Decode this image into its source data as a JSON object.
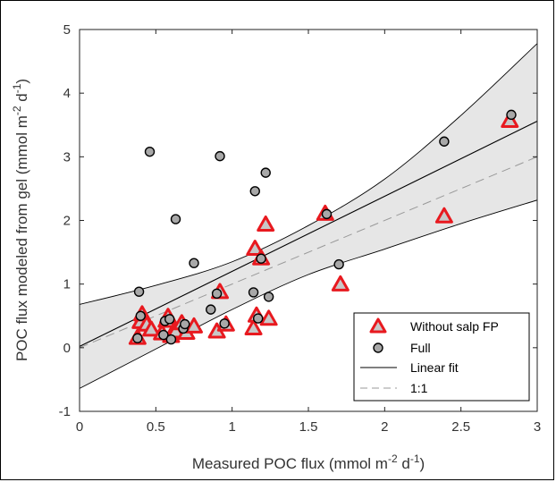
{
  "chart_data": {
    "type": "scatter",
    "xlabel": {
      "prefix": "Measured POC flux (mmol m",
      "exp1": "-2",
      "mid": " d",
      "exp2": "-1",
      "suffix": ")"
    },
    "ylabel": {
      "prefix": "POC flux modeled from gel (mmol m",
      "exp1": "-2",
      "mid": " d",
      "exp2": "-1",
      "suffix": ")"
    },
    "xlim": [
      0,
      3
    ],
    "ylim": [
      -1,
      5
    ],
    "xticks": [
      0,
      0.5,
      1,
      1.5,
      2,
      2.5,
      3
    ],
    "xtick_labels": [
      "0",
      "0.5",
      "1",
      "1.5",
      "2",
      "2.5",
      "3"
    ],
    "yticks": [
      -1,
      0,
      1,
      2,
      3,
      4,
      5
    ],
    "ytick_labels": [
      "-1",
      "0",
      "1",
      "2",
      "3",
      "4",
      "5"
    ],
    "grid": false,
    "legend_position": "bottom-right",
    "series": [
      {
        "name": "Without salp FP",
        "marker": "triangle",
        "color": "#e8191f",
        "fill": "#c8c8c8",
        "points": [
          [
            0.38,
            0.15
          ],
          [
            0.4,
            0.4
          ],
          [
            0.41,
            0.52
          ],
          [
            0.44,
            0.36
          ],
          [
            0.47,
            0.28
          ],
          [
            0.54,
            0.22
          ],
          [
            0.57,
            0.42
          ],
          [
            0.58,
            0.48
          ],
          [
            0.6,
            0.18
          ],
          [
            0.63,
            0.25
          ],
          [
            0.67,
            0.38
          ],
          [
            0.7,
            0.23
          ],
          [
            0.75,
            0.33
          ],
          [
            0.9,
            0.25
          ],
          [
            0.92,
            0.87
          ],
          [
            0.96,
            0.36
          ],
          [
            1.14,
            0.3
          ],
          [
            1.15,
            1.55
          ],
          [
            1.16,
            0.5
          ],
          [
            1.19,
            1.4
          ],
          [
            1.22,
            1.93
          ],
          [
            1.24,
            0.45
          ],
          [
            1.61,
            2.1
          ],
          [
            1.71,
            0.99
          ],
          [
            2.39,
            2.06
          ],
          [
            2.82,
            3.56
          ]
        ]
      },
      {
        "name": "Full",
        "marker": "circle",
        "color": "#000000",
        "fill": "#a8a8a8",
        "points": [
          [
            0.38,
            0.15
          ],
          [
            0.39,
            0.88
          ],
          [
            0.4,
            0.5
          ],
          [
            0.46,
            3.08
          ],
          [
            0.55,
            0.2
          ],
          [
            0.56,
            0.42
          ],
          [
            0.59,
            0.45
          ],
          [
            0.6,
            0.13
          ],
          [
            0.63,
            2.02
          ],
          [
            0.68,
            0.3
          ],
          [
            0.69,
            0.37
          ],
          [
            0.75,
            1.33
          ],
          [
            0.86,
            0.6
          ],
          [
            0.9,
            0.85
          ],
          [
            0.92,
            3.01
          ],
          [
            0.95,
            0.38
          ],
          [
            1.14,
            0.87
          ],
          [
            1.15,
            2.46
          ],
          [
            1.17,
            0.46
          ],
          [
            1.19,
            1.4
          ],
          [
            1.22,
            2.75
          ],
          [
            1.24,
            0.8
          ],
          [
            1.62,
            2.1
          ],
          [
            1.7,
            1.31
          ],
          [
            2.39,
            3.24
          ],
          [
            2.83,
            3.66
          ]
        ]
      }
    ],
    "fit": {
      "name": "Linear fit",
      "slope": 1.18,
      "intercept": 0.02,
      "ci_upper": [
        [
          0,
          0.68
        ],
        [
          0.5,
          0.98
        ],
        [
          1.0,
          1.35
        ],
        [
          1.5,
          1.92
        ],
        [
          2.0,
          2.65
        ],
        [
          2.5,
          3.65
        ],
        [
          3.0,
          4.78
        ]
      ],
      "ci_lower": [
        [
          0,
          -0.64
        ],
        [
          0.5,
          -0.02
        ],
        [
          1.0,
          0.6
        ],
        [
          1.5,
          1.15
        ],
        [
          2.0,
          1.55
        ],
        [
          2.5,
          1.95
        ],
        [
          3.0,
          2.32
        ]
      ],
      "band_color": "#e6e6e6",
      "line_color": "#000000"
    },
    "one_to_one": {
      "name": "1:1",
      "color": "#999999"
    }
  }
}
